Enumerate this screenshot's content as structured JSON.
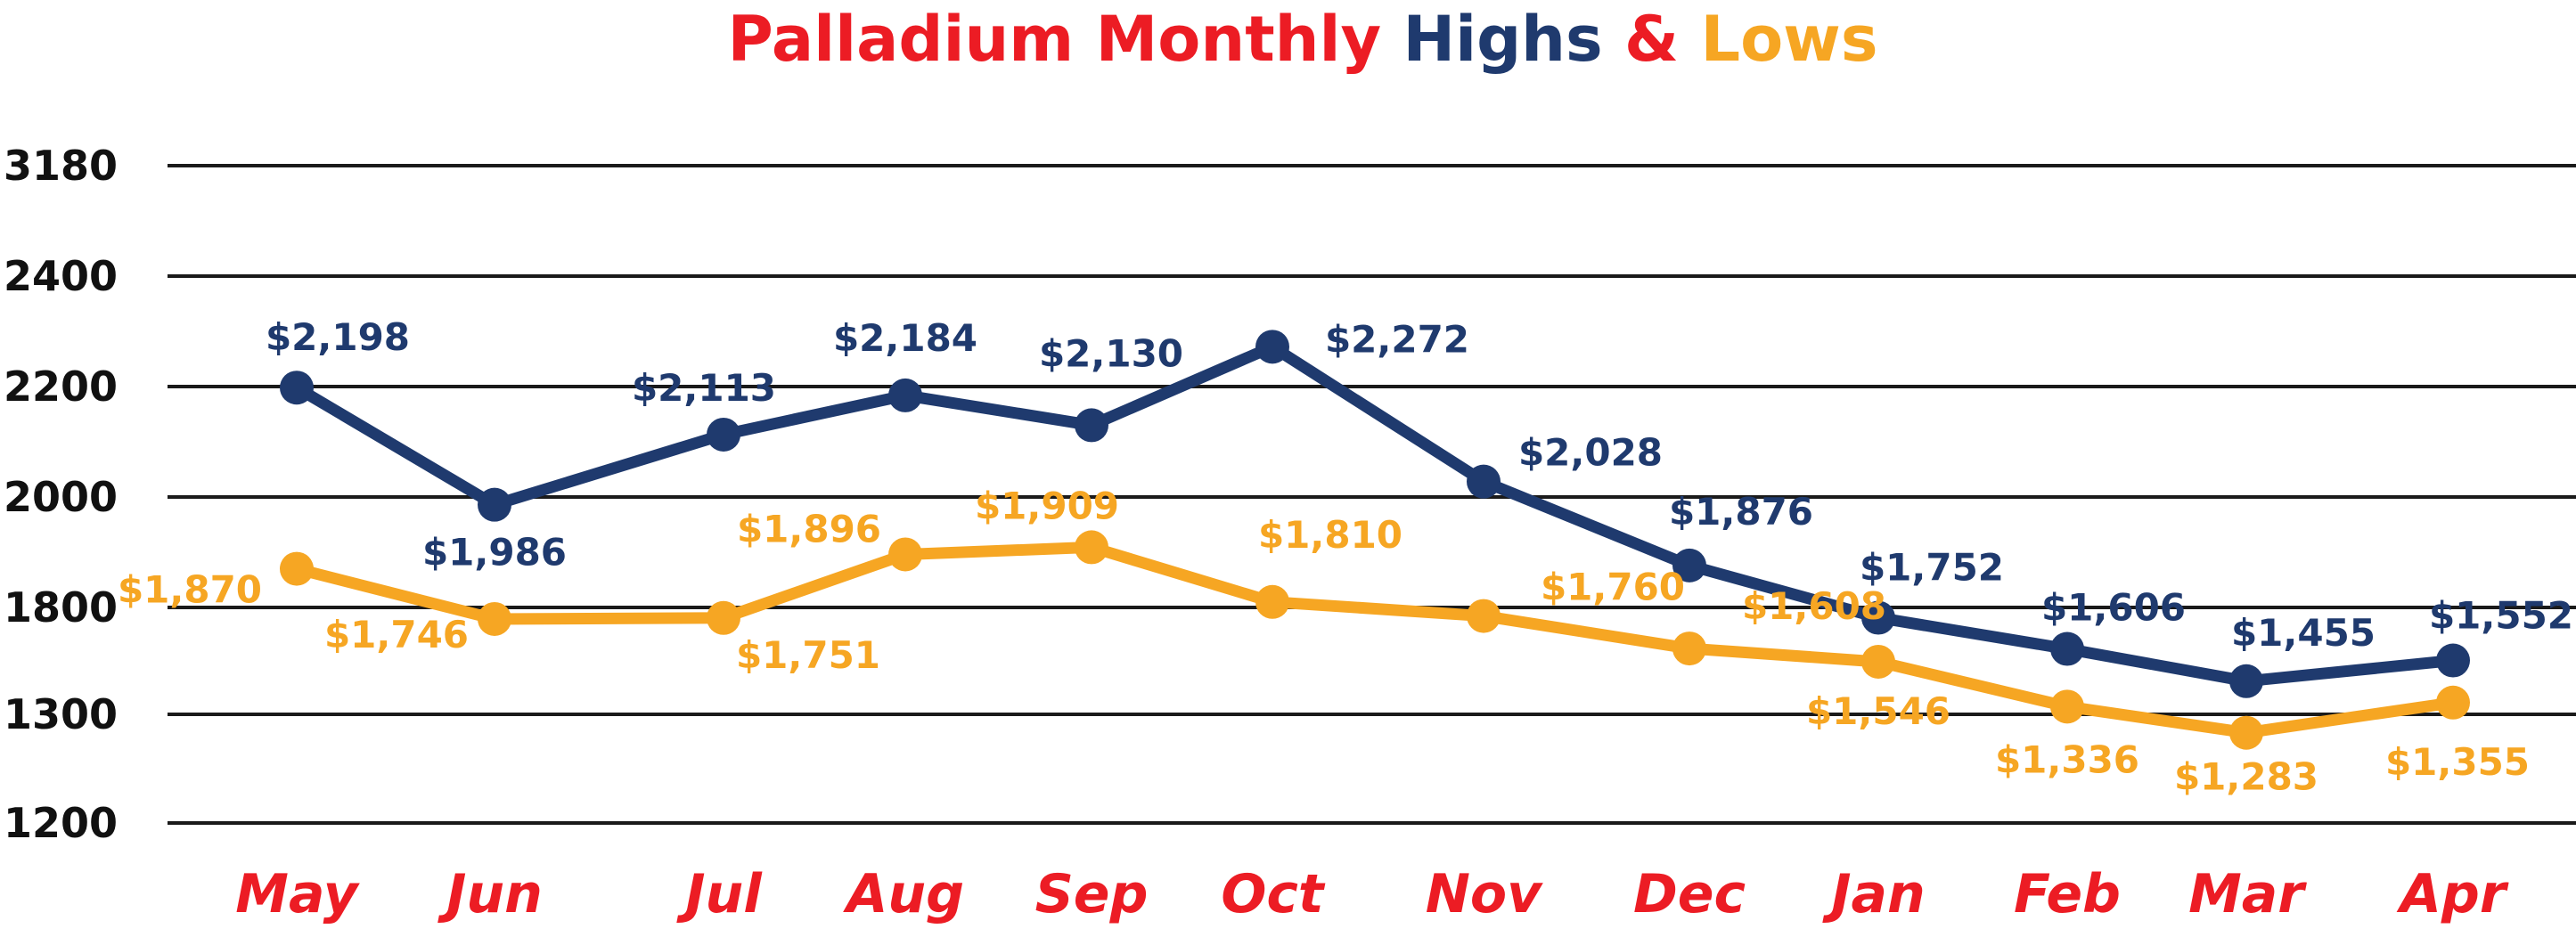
{
  "chart_data": {
    "type": "line",
    "title_parts": [
      {
        "text": "Palladium Monthly ",
        "color": "#ec1c24"
      },
      {
        "text": "Highs",
        "color": "#1f3a6e"
      },
      {
        "text": " & ",
        "color": "#ec1c24"
      },
      {
        "text": "Lows",
        "color": "#f6a623"
      }
    ],
    "categories": [
      "May",
      "Jun",
      "Jul",
      "Aug",
      "Sep",
      "Oct",
      "Nov",
      "Dec",
      "Jan",
      "Feb",
      "Mar",
      "Apr"
    ],
    "y_ticks": [
      3180,
      2400,
      2200,
      2000,
      1800,
      1300,
      1200
    ],
    "grid": true,
    "series": [
      {
        "name": "Highs",
        "color": "#1f3a6e",
        "values": [
          2198,
          1986,
          2113,
          2184,
          2130,
          2272,
          2028,
          1876,
          1752,
          1606,
          1455,
          1552
        ],
        "labels": [
          "$2,198",
          "$1,986",
          "$2,113",
          "$2,184",
          "$2,130",
          "$2,272",
          "$2,028",
          "$1,876",
          "$1,752",
          "$1,606",
          "$1,455",
          "$1,552"
        ]
      },
      {
        "name": "Lows",
        "color": "#f6a623",
        "values": [
          1870,
          1746,
          1751,
          1896,
          1909,
          1810,
          1760,
          1608,
          1546,
          1336,
          1283,
          1355
        ],
        "labels": [
          "$1,870",
          "$1,746",
          "$1,751",
          "$1,896",
          "$1,909",
          "$1,810",
          "$1,760",
          "$1,608",
          "$1,546",
          "$1,336",
          "$1,283",
          "$1,355"
        ]
      }
    ]
  }
}
